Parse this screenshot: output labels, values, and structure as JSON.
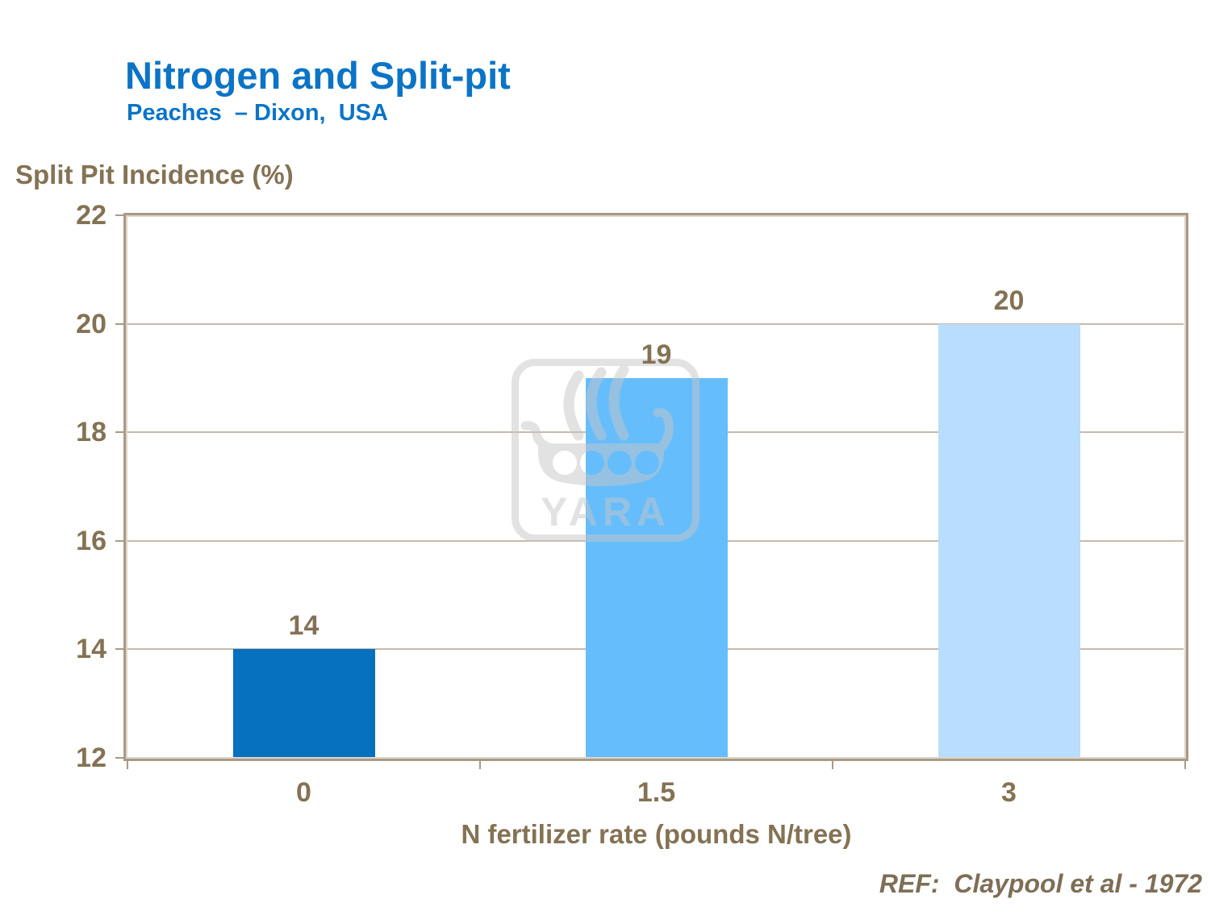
{
  "slide": {
    "title": "Nitrogen and Split-pit",
    "subtitle": "Peaches  – Dixon,  USA",
    "reference": "REF:  Claypool et al - 1972",
    "watermark_text": "YARA",
    "colors": {
      "heading_blue": "#0c74c6",
      "chart_text_brown": "#847254",
      "axis_line_tan": "#a89a86",
      "gridline_tan": "#c6baab",
      "watermark_gray": "#c6c6c6"
    }
  },
  "chart_data": {
    "type": "bar",
    "title": "Nitrogen and Split-pit",
    "subtitle": "Peaches – Dixon, USA",
    "categories": [
      "0",
      "1.5",
      "3"
    ],
    "values": [
      14,
      19,
      20
    ],
    "data_labels": [
      "14",
      "19",
      "20"
    ],
    "bar_colors": [
      "#0571bf",
      "#66bdfc",
      "#b9ddfc"
    ],
    "xlabel": "N fertilizer rate (pounds N/tree)",
    "ylabel": "Split Pit Incidence (%)",
    "ylim": [
      12,
      22
    ],
    "yticks": [
      12,
      14,
      16,
      18,
      20,
      22
    ],
    "grid": "horizontal gridlines at each y tick",
    "legend": "none",
    "reference": "REF:  Claypool et al - 1972"
  }
}
